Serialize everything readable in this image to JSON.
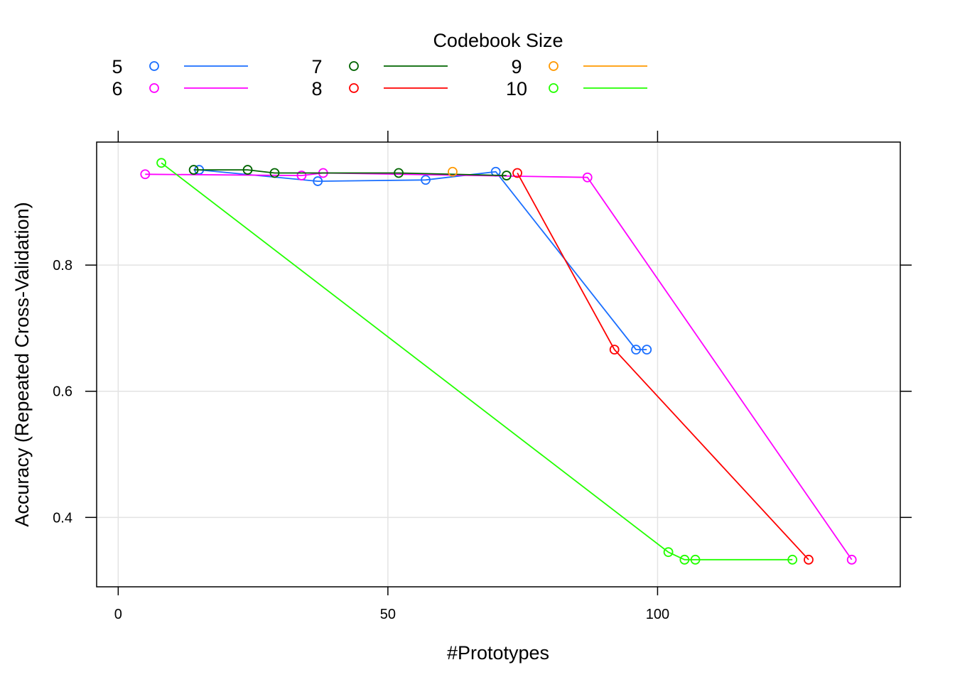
{
  "chart_data": {
    "type": "line",
    "xlabel": "#Prototypes",
    "ylabel": "Accuracy (Repeated Cross-Validation)",
    "xlim": [
      -4,
      145
    ],
    "ylim": [
      0.29,
      0.995
    ],
    "xticks": [
      0,
      50,
      100
    ],
    "yticks": [
      0.4,
      0.6,
      0.8
    ],
    "grid": true,
    "legend": {
      "title": "Codebook Size",
      "position": "top",
      "columns": 3
    },
    "series": [
      {
        "name": "5",
        "color": "#1b6fff",
        "x": [
          15,
          37,
          57,
          70,
          96,
          98
        ],
        "y": [
          0.951,
          0.933,
          0.935,
          0.948,
          0.666,
          0.666
        ]
      },
      {
        "name": "6",
        "color": "#ff00ff",
        "x": [
          5,
          34,
          38,
          87,
          136
        ],
        "y": [
          0.944,
          0.942,
          0.946,
          0.939,
          0.333
        ]
      },
      {
        "name": "7",
        "color": "#006400",
        "x": [
          14,
          24,
          29,
          52,
          72
        ],
        "y": [
          0.951,
          0.951,
          0.946,
          0.946,
          0.942
        ]
      },
      {
        "name": "8",
        "color": "#ff0000",
        "x": [
          74,
          92,
          128
        ],
        "y": [
          0.946,
          0.666,
          0.333
        ]
      },
      {
        "name": "9",
        "color": "#ff9900",
        "x": [
          62
        ],
        "y": [
          0.948
        ]
      },
      {
        "name": "10",
        "color": "#22ff00",
        "x": [
          8,
          102,
          105,
          107,
          125
        ],
        "y": [
          0.962,
          0.345,
          0.333,
          0.333,
          0.333
        ]
      }
    ]
  }
}
